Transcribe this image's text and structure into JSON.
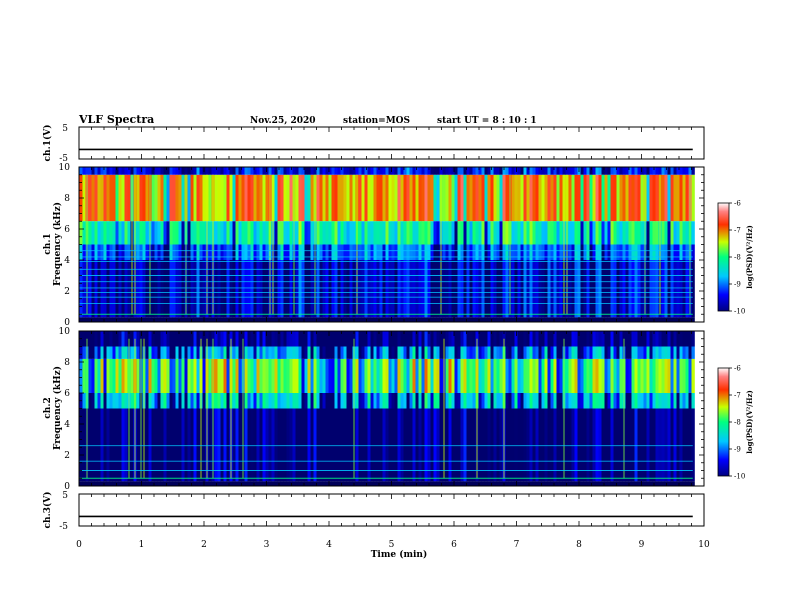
{
  "header": {
    "title": "VLF Spectra",
    "date": "Nov.25, 2020",
    "station": "station=MOS",
    "start_ut": "start  UT =   8  : 10 : 1"
  },
  "chart_data": [
    {
      "type": "line",
      "panel": "ch1-voltage",
      "ylabel": "ch.1(V)",
      "ylim": [
        -5,
        5
      ],
      "yticks": [
        "5",
        "-5"
      ],
      "x": [
        0,
        9.82
      ],
      "y": [
        -2,
        -2
      ]
    },
    {
      "type": "heatmap",
      "panel": "ch1-spectrogram",
      "ylabel_top": "ch.1",
      "ylabel": "Frequency (kHz)",
      "ylim": [
        0,
        10
      ],
      "yticks": [
        "0",
        "2",
        "4",
        "6",
        "8",
        "10"
      ],
      "xlim": [
        0,
        10
      ],
      "data_xlim": [
        0,
        9.82
      ],
      "bands": [
        {
          "fmin": 6.5,
          "fmax": 9.5,
          "level": -7.0
        },
        {
          "fmin": 5.0,
          "fmax": 6.5,
          "level": -8.2
        },
        {
          "fmin": 4.0,
          "fmax": 5.0,
          "level": -9.0
        },
        {
          "fmin": 0.3,
          "fmax": 4.0,
          "level": -9.6
        },
        {
          "fmin": 9.5,
          "fmax": 10.0,
          "level": -9.4
        }
      ],
      "lines_khz": [
        0.5,
        1.2,
        1.6,
        1.9,
        2.2,
        2.6,
        3.0,
        3.4,
        3.9,
        4.2,
        4.6
      ],
      "colorbar": {
        "label": "log(PSD)(V²/Hz)",
        "ticks": [
          "-6",
          "-7",
          "-8",
          "-9",
          "-10"
        ],
        "range": [
          -10,
          -6
        ]
      }
    },
    {
      "type": "heatmap",
      "panel": "ch2-spectrogram",
      "ylabel_top": "ch.2",
      "ylabel": "Frequency (kHz)",
      "ylim": [
        0,
        10
      ],
      "yticks": [
        "0",
        "2",
        "4",
        "6",
        "8",
        "10"
      ],
      "xlim": [
        0,
        10
      ],
      "data_xlim": [
        0,
        9.82
      ],
      "bands": [
        {
          "fmin": 6.0,
          "fmax": 8.2,
          "level": -7.6
        },
        {
          "fmin": 5.0,
          "fmax": 6.0,
          "level": -8.5
        },
        {
          "fmin": 8.2,
          "fmax": 9.0,
          "level": -8.8
        },
        {
          "fmin": 0.3,
          "fmax": 5.0,
          "level": -9.9
        },
        {
          "fmin": 9.0,
          "fmax": 10.0,
          "level": -9.9
        }
      ],
      "lines_khz": [
        0.5,
        1.0,
        1.6,
        2.6
      ],
      "colorbar": {
        "label": "log(PSD)(V²/Hz)",
        "ticks": [
          "-6",
          "-7",
          "-8",
          "-9",
          "-10"
        ],
        "range": [
          -10,
          -6
        ]
      }
    },
    {
      "type": "line",
      "panel": "ch3-voltage",
      "ylabel": "ch.3(V)",
      "ylim": [
        -5,
        5
      ],
      "yticks": [
        "5",
        "-5"
      ],
      "x": [
        0,
        9.82
      ],
      "y": [
        -2,
        -2
      ]
    }
  ],
  "x_axis": {
    "label": "Time (min)",
    "ticks": [
      "0",
      "1",
      "2",
      "3",
      "4",
      "5",
      "6",
      "7",
      "8",
      "9",
      "10"
    ],
    "range": [
      0,
      10
    ]
  }
}
